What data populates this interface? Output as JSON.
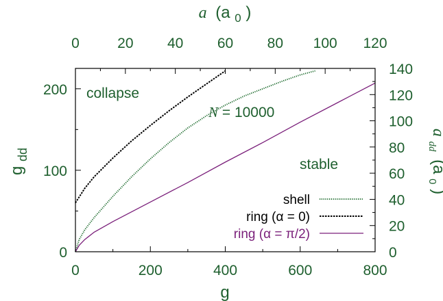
{
  "chart_data": {
    "type": "line",
    "xlabel": "g",
    "ylabel": "g",
    "ylabel_sub": "dd",
    "x2label": "a",
    "x2label_unit": "(a",
    "x2label_unit_sub": "0",
    "x2label_unit_close": ")",
    "y2label": "a",
    "y2label_sub": "dd",
    "y2label_unit": "(a",
    "y2label_unit_sub": "0",
    "y2label_unit_close": ")",
    "xlim": [
      0,
      800
    ],
    "ylim": [
      0,
      225
    ],
    "x2lim": [
      0,
      120
    ],
    "y2lim": [
      0,
      140
    ],
    "xticks": [
      "0",
      "200",
      "400",
      "600",
      "800"
    ],
    "yticks": [
      "0",
      "100",
      "200"
    ],
    "x2ticks": [
      "0",
      "20",
      "40",
      "60",
      "80",
      "100",
      "120"
    ],
    "y2ticks": [
      "0",
      "20",
      "40",
      "60",
      "80",
      "100",
      "120",
      "140"
    ],
    "xtick_values": [
      0,
      200,
      400,
      600,
      800
    ],
    "ytick_values": [
      0,
      100,
      200
    ],
    "x2tick_values": [
      0,
      20,
      40,
      60,
      80,
      100,
      120
    ],
    "y2tick_values": [
      0,
      20,
      40,
      60,
      80,
      100,
      120,
      140
    ],
    "annotations": {
      "collapse": "collapse",
      "stable": "stable",
      "n_label_var": "N",
      "n_label_rest": " = 10000"
    },
    "legend_position": "bottom-right",
    "series": [
      {
        "name": "shell",
        "color": "#1e6b2e",
        "style": "dotted",
        "x": [
          0,
          10,
          25,
          50,
          100,
          150,
          200,
          250,
          300,
          350,
          400,
          450,
          500,
          550,
          600,
          640
        ],
        "y": [
          0,
          15,
          27,
          42,
          68,
          92,
          114,
          134,
          152,
          167,
          180,
          191,
          200,
          209,
          217,
          222
        ]
      },
      {
        "name": "ring (α = 0)",
        "color": "#000000",
        "style": "dashed",
        "x": [
          0,
          25,
          50,
          100,
          150,
          200,
          250,
          300,
          350,
          400
        ],
        "y": [
          60,
          78,
          92,
          115,
          136,
          155,
          173,
          190,
          206,
          222
        ]
      },
      {
        "name": "ring (α = π/2)",
        "color": "#7a1f7a",
        "style": "solid",
        "x": [
          0,
          10,
          25,
          50,
          100,
          200,
          300,
          400,
          500,
          600,
          700,
          800
        ],
        "y": [
          0,
          8,
          15,
          24,
          37,
          61,
          85,
          110,
          134,
          159,
          183,
          207
        ]
      }
    ]
  }
}
